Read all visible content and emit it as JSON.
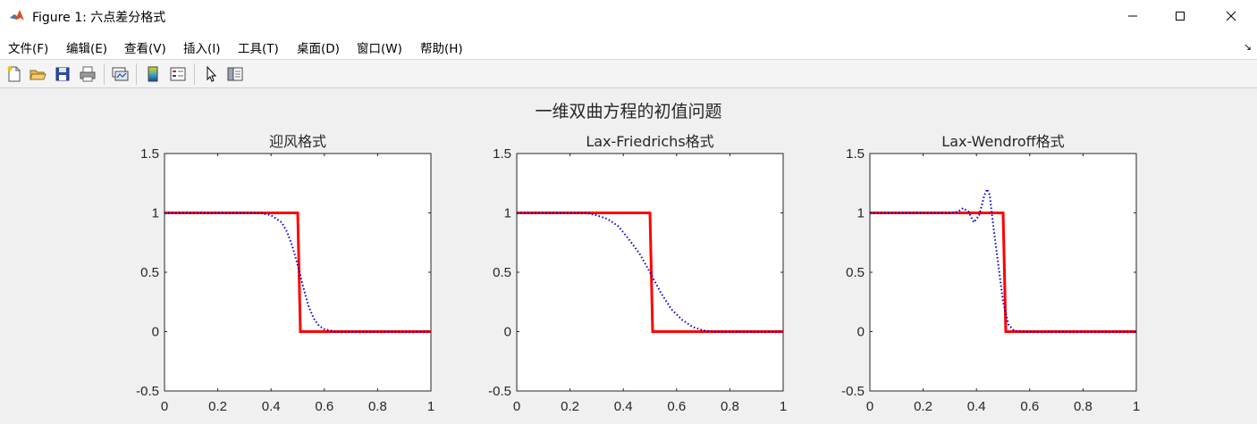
{
  "window": {
    "title": "Figure 1: 六点差分格式",
    "icon": "matlab-logo-icon",
    "controls": [
      "minimize-icon",
      "maximize-icon",
      "close-icon"
    ]
  },
  "menu": {
    "items": [
      {
        "label": "文件(F)"
      },
      {
        "label": "编辑(E)"
      },
      {
        "label": "查看(V)"
      },
      {
        "label": "插入(I)"
      },
      {
        "label": "工具(T)"
      },
      {
        "label": "桌面(D)"
      },
      {
        "label": "窗口(W)"
      },
      {
        "label": "帮助(H)"
      }
    ],
    "overflow_glyph": "↘"
  },
  "toolbar": {
    "icons": [
      "new-figure-icon",
      "open-file-icon",
      "save-icon",
      "print-icon",
      "link-plot-icon",
      "insert-colorbar-icon",
      "insert-legend-icon",
      "edit-plot-pointer-icon",
      "property-inspector-icon"
    ]
  },
  "figure": {
    "suptitle": "一维双曲方程的初值问题"
  },
  "chart_data": [
    {
      "type": "line",
      "title": "迎风格式",
      "xlim": [
        0,
        1
      ],
      "ylim": [
        -0.5,
        1.5
      ],
      "xticks": [
        "0",
        "0.2",
        "0.4",
        "0.6",
        "0.8",
        "1"
      ],
      "yticks": [
        "-0.5",
        "0",
        "0.5",
        "1",
        "1.5"
      ],
      "grid": false,
      "series": [
        {
          "style": "solid",
          "color": "#ff0000",
          "x": [
            0,
            0.5,
            0.51,
            1
          ],
          "y": [
            1,
            1,
            0,
            0
          ]
        },
        {
          "style": "dotted",
          "color": "#0000cc",
          "x": [
            0,
            0.36,
            0.4,
            0.44,
            0.46,
            0.48,
            0.5,
            0.52,
            0.54,
            0.56,
            0.58,
            0.6,
            0.62,
            0.64,
            1
          ],
          "y": [
            1,
            1,
            0.98,
            0.92,
            0.84,
            0.72,
            0.56,
            0.38,
            0.22,
            0.11,
            0.05,
            0.02,
            0.01,
            0,
            0
          ]
        }
      ]
    },
    {
      "type": "line",
      "title": "Lax-Friedrichs格式",
      "xlim": [
        0,
        1
      ],
      "ylim": [
        -0.5,
        1.5
      ],
      "xticks": [
        "0",
        "0.2",
        "0.4",
        "0.6",
        "0.8",
        "1"
      ],
      "yticks": [
        "-0.5",
        "0",
        "0.5",
        "1",
        "1.5"
      ],
      "grid": false,
      "series": [
        {
          "style": "solid",
          "color": "#ff0000",
          "x": [
            0,
            0.5,
            0.51,
            1
          ],
          "y": [
            1,
            1,
            0,
            0
          ]
        },
        {
          "style": "dotted",
          "color": "#0000cc",
          "x": [
            0,
            0.26,
            0.3,
            0.34,
            0.38,
            0.42,
            0.46,
            0.5,
            0.54,
            0.58,
            0.62,
            0.66,
            0.7,
            0.74,
            1
          ],
          "y": [
            1,
            1,
            0.98,
            0.95,
            0.89,
            0.78,
            0.66,
            0.5,
            0.33,
            0.19,
            0.1,
            0.04,
            0.01,
            0,
            0
          ]
        }
      ]
    },
    {
      "type": "line",
      "title": "Lax-Wendroff格式",
      "xlim": [
        0,
        1
      ],
      "ylim": [
        -0.5,
        1.5
      ],
      "xticks": [
        "0",
        "0.2",
        "0.4",
        "0.6",
        "0.8",
        "1"
      ],
      "yticks": [
        "-0.5",
        "0",
        "0.5",
        "1",
        "1.5"
      ],
      "grid": false,
      "series": [
        {
          "style": "solid",
          "color": "#ff0000",
          "x": [
            0,
            0.5,
            0.51,
            1
          ],
          "y": [
            1,
            1,
            0,
            0
          ]
        },
        {
          "style": "dotted",
          "color": "#0000cc",
          "x": [
            0,
            0.3,
            0.33,
            0.35,
            0.37,
            0.39,
            0.41,
            0.43,
            0.44,
            0.45,
            0.46,
            0.48,
            0.5,
            0.52,
            0.54,
            0.56,
            1
          ],
          "y": [
            1,
            1,
            1.01,
            1.04,
            1.01,
            0.92,
            0.98,
            1.15,
            1.2,
            1.15,
            0.95,
            0.6,
            0.25,
            0.06,
            0.01,
            0,
            0
          ]
        }
      ]
    }
  ]
}
